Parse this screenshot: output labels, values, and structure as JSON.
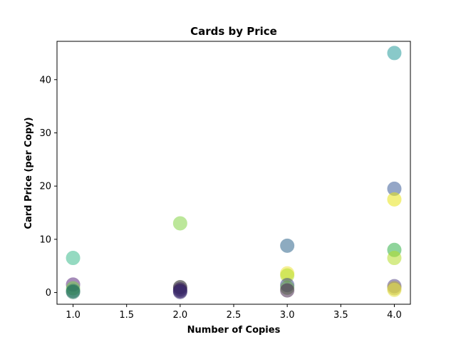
{
  "chart_data": {
    "type": "scatter",
    "title": "Cards by Price",
    "xlabel": "Number of Copies",
    "ylabel": "Card Price (per Copy)",
    "xlim": [
      0.85,
      4.15
    ],
    "ylim": [
      -2.2,
      47.2
    ],
    "xticks": [
      1.0,
      1.5,
      2.0,
      2.5,
      3.0,
      3.5,
      4.0
    ],
    "xtick_labels": [
      "1.0",
      "1.5",
      "2.0",
      "2.5",
      "3.0",
      "3.5",
      "4.0"
    ],
    "yticks": [
      0,
      10,
      20,
      30,
      40
    ],
    "ytick_labels": [
      "0",
      "10",
      "20",
      "30",
      "40"
    ],
    "grid": false,
    "legend": false,
    "points": [
      {
        "x": 1,
        "y": 6.5,
        "color": "#3fbc8f"
      },
      {
        "x": 1,
        "y": 1.5,
        "color": "#5c2d80"
      },
      {
        "x": 1,
        "y": 0.8,
        "color": "#7ad151"
      },
      {
        "x": 1,
        "y": 0.3,
        "color": "#2a7f62"
      },
      {
        "x": 1,
        "y": 0.1,
        "color": "#1f6e5a"
      },
      {
        "x": 2,
        "y": 13.0,
        "color": "#86d549"
      },
      {
        "x": 2,
        "y": 1.0,
        "color": "#1a1a1a"
      },
      {
        "x": 2,
        "y": 0.6,
        "color": "#3b1f5e"
      },
      {
        "x": 2,
        "y": 0.3,
        "color": "#2b1450"
      },
      {
        "x": 2,
        "y": 0.1,
        "color": "#3a2b74"
      },
      {
        "x": 3,
        "y": 8.8,
        "color": "#31688e"
      },
      {
        "x": 3,
        "y": 3.6,
        "color": "#f0e442"
      },
      {
        "x": 3,
        "y": 3.2,
        "color": "#b5de2b"
      },
      {
        "x": 3,
        "y": 1.4,
        "color": "#3e4a89"
      },
      {
        "x": 3,
        "y": 0.9,
        "color": "#6aa84f"
      },
      {
        "x": 3,
        "y": 0.4,
        "color": "#4b2b50"
      },
      {
        "x": 4,
        "y": 45.0,
        "color": "#2a9d9e"
      },
      {
        "x": 4,
        "y": 19.5,
        "color": "#3e5f9a"
      },
      {
        "x": 4,
        "y": 17.5,
        "color": "#e8e419"
      },
      {
        "x": 4,
        "y": 8.0,
        "color": "#35b24a"
      },
      {
        "x": 4,
        "y": 6.5,
        "color": "#b5de2b"
      },
      {
        "x": 4,
        "y": 1.2,
        "color": "#5b4a8a"
      },
      {
        "x": 4,
        "y": 0.8,
        "color": "#b6a93a"
      },
      {
        "x": 4,
        "y": 0.5,
        "color": "#e6e24a"
      }
    ]
  }
}
